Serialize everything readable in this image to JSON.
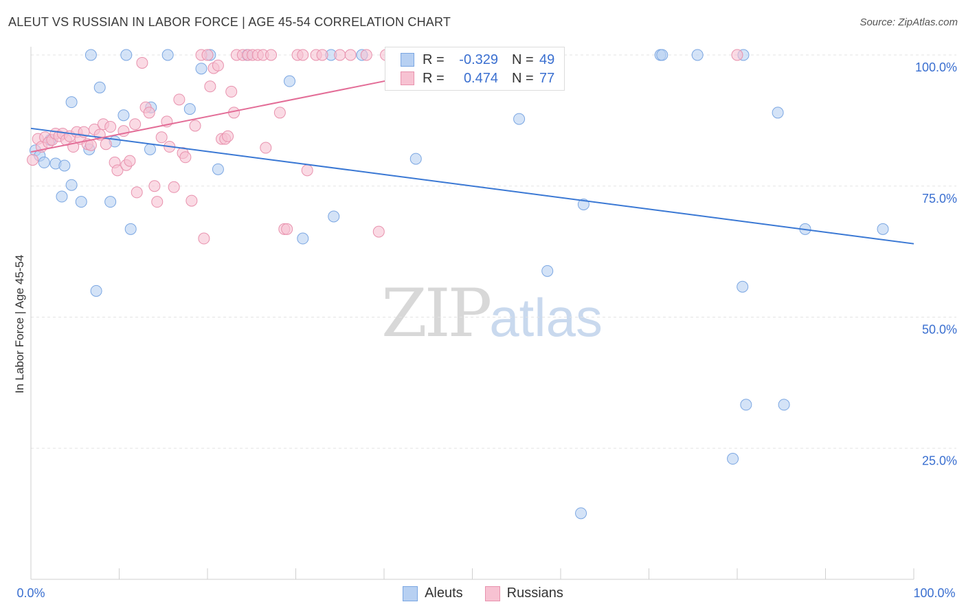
{
  "title": "ALEUT VS RUSSIAN IN LABOR FORCE | AGE 45-54 CORRELATION CHART",
  "source": "Source: ZipAtlas.com",
  "watermark": {
    "zip": "ZIP",
    "atlas": "atlas"
  },
  "stats": [
    {
      "r_label": "R =",
      "r_value": "-0.329",
      "n_label": "N =",
      "n_value": "49"
    },
    {
      "r_label": "R =",
      "r_value": "0.474",
      "n_label": "N =",
      "n_value": "77"
    }
  ],
  "legend": [
    {
      "label": "Aleuts"
    },
    {
      "label": "Russians"
    }
  ],
  "colors": {
    "aleut_fill": "#b7d0f2",
    "aleut_stroke": "#7aa6e2",
    "aleut_line": "#3a78d4",
    "russian_fill": "#f7c2d2",
    "russian_stroke": "#e891ad",
    "russian_line": "#e36d97",
    "tick_label": "#3a6fd0",
    "grid": "#e3e3e3"
  },
  "chart_data": {
    "type": "scatter",
    "title": "ALEUT VS RUSSIAN IN LABOR FORCE | AGE 45-54 CORRELATION CHART",
    "xlabel": "",
    "ylabel": "In Labor Force | Age 45-54",
    "xlim": [
      0,
      100
    ],
    "ylim": [
      0,
      100
    ],
    "x_tick_labels": [
      "0.0%",
      "100.0%"
    ],
    "y_ticks": [
      25,
      50,
      75,
      100
    ],
    "y_tick_labels": [
      "25.0%",
      "50.0%",
      "75.0%",
      "100.0%"
    ],
    "grid": true,
    "legend_position": "bottom-center",
    "series": [
      {
        "name": "Aleuts",
        "r": -0.329,
        "n": 49,
        "trend": {
          "x": [
            0,
            100
          ],
          "y": [
            86.0,
            64.0
          ]
        },
        "points": [
          [
            0.5,
            81.8
          ],
          [
            1.0,
            80.8
          ],
          [
            1.5,
            79.5
          ],
          [
            2.2,
            83.8
          ],
          [
            2.8,
            79.3
          ],
          [
            3.5,
            73.0
          ],
          [
            3.8,
            78.9
          ],
          [
            4.6,
            75.2
          ],
          [
            4.6,
            91.0
          ],
          [
            5.7,
            72.0
          ],
          [
            6.6,
            82.0
          ],
          [
            6.8,
            100
          ],
          [
            7.4,
            55.0
          ],
          [
            7.8,
            93.8
          ],
          [
            9.0,
            72.0
          ],
          [
            9.5,
            83.5
          ],
          [
            10.5,
            88.5
          ],
          [
            10.8,
            100
          ],
          [
            11.3,
            66.8
          ],
          [
            13.5,
            82.0
          ],
          [
            13.6,
            90.0
          ],
          [
            15.5,
            100
          ],
          [
            18.0,
            89.7
          ],
          [
            19.3,
            97.4
          ],
          [
            20.3,
            100
          ],
          [
            21.2,
            78.2
          ],
          [
            24.5,
            100
          ],
          [
            29.3,
            95.0
          ],
          [
            30.8,
            65.0
          ],
          [
            34.0,
            100
          ],
          [
            34.3,
            69.2
          ],
          [
            37.5,
            100
          ],
          [
            43.6,
            80.2
          ],
          [
            53.0,
            100
          ],
          [
            55.3,
            87.8
          ],
          [
            58.5,
            58.8
          ],
          [
            62.3,
            12.6
          ],
          [
            62.6,
            71.5
          ],
          [
            71.3,
            100
          ],
          [
            71.5,
            100
          ],
          [
            75.5,
            100
          ],
          [
            79.5,
            23.0
          ],
          [
            80.6,
            55.8
          ],
          [
            80.7,
            100
          ],
          [
            81.0,
            33.3
          ],
          [
            84.6,
            89.0
          ],
          [
            85.3,
            33.3
          ],
          [
            87.7,
            66.8
          ],
          [
            96.5,
            66.8
          ]
        ]
      },
      {
        "name": "Russians",
        "r": 0.474,
        "n": 77,
        "trend": {
          "x": [
            0,
            56
          ],
          "y": [
            81.5,
            100.4
          ]
        },
        "points": [
          [
            0.2,
            80.0
          ],
          [
            0.8,
            84.0
          ],
          [
            1.2,
            82.5
          ],
          [
            1.6,
            84.3
          ],
          [
            2.0,
            83.3
          ],
          [
            2.4,
            83.8
          ],
          [
            2.8,
            85.0
          ],
          [
            3.2,
            84.5
          ],
          [
            3.6,
            85.0
          ],
          [
            4.0,
            83.8
          ],
          [
            4.4,
            84.5
          ],
          [
            4.8,
            82.5
          ],
          [
            5.2,
            85.3
          ],
          [
            5.6,
            84.0
          ],
          [
            6.0,
            85.3
          ],
          [
            6.4,
            83.0
          ],
          [
            6.8,
            82.8
          ],
          [
            7.2,
            85.8
          ],
          [
            7.8,
            84.8
          ],
          [
            8.2,
            86.8
          ],
          [
            8.5,
            83.0
          ],
          [
            9.0,
            86.3
          ],
          [
            9.5,
            79.5
          ],
          [
            9.8,
            78.0
          ],
          [
            10.5,
            85.5
          ],
          [
            10.8,
            79.0
          ],
          [
            11.2,
            79.8
          ],
          [
            11.8,
            86.8
          ],
          [
            12.0,
            73.8
          ],
          [
            12.6,
            98.5
          ],
          [
            13.0,
            90.0
          ],
          [
            13.4,
            89.0
          ],
          [
            14.0,
            75.0
          ],
          [
            14.3,
            72.0
          ],
          [
            14.8,
            84.3
          ],
          [
            15.4,
            87.3
          ],
          [
            15.7,
            82.5
          ],
          [
            16.2,
            74.8
          ],
          [
            16.8,
            91.5
          ],
          [
            17.2,
            81.3
          ],
          [
            17.5,
            80.5
          ],
          [
            18.2,
            72.2
          ],
          [
            18.6,
            86.5
          ],
          [
            19.3,
            100
          ],
          [
            19.6,
            65.0
          ],
          [
            20.0,
            100
          ],
          [
            20.3,
            94.0
          ],
          [
            20.7,
            97.5
          ],
          [
            21.2,
            98.0
          ],
          [
            21.6,
            84.0
          ],
          [
            22.0,
            84.0
          ],
          [
            22.3,
            84.5
          ],
          [
            22.7,
            93.0
          ],
          [
            23.0,
            89.0
          ],
          [
            23.3,
            100
          ],
          [
            24.0,
            100
          ],
          [
            24.6,
            100
          ],
          [
            25.1,
            100
          ],
          [
            25.7,
            100
          ],
          [
            26.3,
            100
          ],
          [
            26.6,
            82.3
          ],
          [
            27.2,
            100
          ],
          [
            28.2,
            89.0
          ],
          [
            28.7,
            66.8
          ],
          [
            29.0,
            66.8
          ],
          [
            30.2,
            100
          ],
          [
            30.8,
            100
          ],
          [
            31.3,
            78.0
          ],
          [
            32.3,
            100
          ],
          [
            33.0,
            100
          ],
          [
            35.0,
            100
          ],
          [
            36.2,
            100
          ],
          [
            38.0,
            100
          ],
          [
            39.4,
            66.3
          ],
          [
            40.2,
            100
          ],
          [
            53.3,
            100
          ],
          [
            80.0,
            100
          ]
        ]
      }
    ]
  }
}
